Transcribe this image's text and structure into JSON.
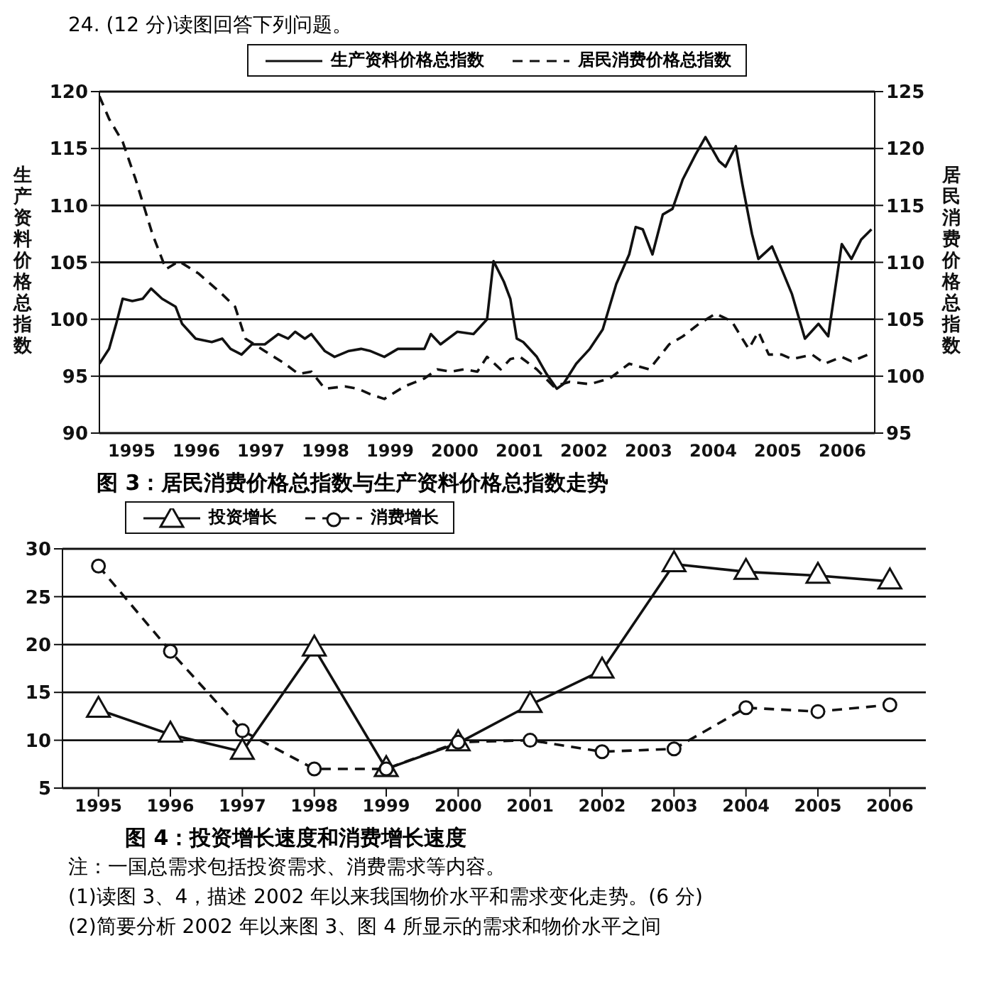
{
  "chart_data": [
    {
      "type": "line",
      "title": "图 3：居民消费价格总指数与生产资料价格总指数走势",
      "ylabel": "生产资料价格总指数",
      "y2label": "居民消费价格总指数",
      "annotations": [
        "24. (12 分)读图回答下列问题。"
      ],
      "xlim": [
        1995,
        2007
      ],
      "xticks": [
        {
          "value": 1995.5,
          "label": "1995"
        },
        {
          "value": 1996.5,
          "label": "1996"
        },
        {
          "value": 1997.5,
          "label": "1997"
        },
        {
          "value": 1998.5,
          "label": "1998"
        },
        {
          "value": 1999.5,
          "label": "1999"
        },
        {
          "value": 2000.5,
          "label": "2000"
        },
        {
          "value": 2001.5,
          "label": "2001"
        },
        {
          "value": 2002.5,
          "label": "2002"
        },
        {
          "value": 2003.5,
          "label": "2003"
        },
        {
          "value": 2004.5,
          "label": "2004"
        },
        {
          "value": 2005.5,
          "label": "2005"
        },
        {
          "value": 2006.5,
          "label": "2006"
        }
      ],
      "ylim": [
        90,
        120
      ],
      "yticks": [
        90,
        95,
        100,
        105,
        110,
        115,
        120
      ],
      "y2lim": [
        95,
        125
      ],
      "y2ticks": [
        95,
        100,
        105,
        110,
        115,
        120,
        125
      ],
      "grid": "y",
      "legend": "top",
      "marker": "none",
      "series": [
        {
          "name": "生产资料价格总指数",
          "color": "#111111",
          "line_style": "solid",
          "x": [
            1995.0,
            1995.15,
            1995.26,
            1995.36,
            1995.51,
            1995.67,
            1995.8,
            1995.97,
            1996.18,
            1996.28,
            1996.49,
            1996.74,
            1996.9,
            1997.03,
            1997.2,
            1997.36,
            1997.56,
            1997.77,
            1997.92,
            1998.03,
            1998.18,
            1998.28,
            1998.49,
            1998.64,
            1998.85,
            1999.05,
            1999.2,
            1999.41,
            1999.62,
            1999.82,
            2000.03,
            2000.13,
            2000.28,
            2000.54,
            2000.79,
            2001.0,
            2001.1,
            2001.26,
            2001.36,
            2001.46,
            2001.56,
            2001.77,
            2001.92,
            2002.08,
            2002.18,
            2002.38,
            2002.59,
            2002.79,
            2003.0,
            2003.2,
            2003.3,
            2003.41,
            2003.56,
            2003.72,
            2003.87,
            2004.03,
            2004.23,
            2004.38,
            2004.59,
            2004.69,
            2004.85,
            2004.95,
            2005.1,
            2005.2,
            2005.41,
            2005.56,
            2005.72,
            2005.92,
            2006.13,
            2006.28,
            2006.49,
            2006.64,
            2006.79,
            2006.95
          ],
          "values": [
            96.1,
            97.4,
            99.6,
            101.8,
            101.6,
            101.8,
            102.7,
            101.8,
            101.1,
            99.6,
            98.3,
            98.0,
            98.3,
            97.4,
            96.9,
            97.8,
            97.8,
            98.7,
            98.3,
            98.9,
            98.3,
            98.7,
            97.2,
            96.7,
            97.2,
            97.4,
            97.2,
            96.7,
            97.4,
            97.4,
            97.4,
            98.7,
            97.8,
            98.9,
            98.7,
            100.0,
            105.1,
            103.3,
            101.8,
            98.3,
            98.0,
            96.7,
            95.2,
            93.9,
            94.3,
            96.1,
            97.4,
            99.1,
            103.1,
            105.7,
            108.1,
            107.9,
            105.7,
            109.2,
            109.7,
            112.3,
            114.5,
            116.0,
            113.9,
            113.4,
            115.2,
            111.9,
            107.5,
            105.3,
            106.4,
            104.4,
            102.2,
            98.3,
            99.6,
            98.5,
            106.6,
            105.3,
            107.0,
            107.9
          ]
        },
        {
          "name": "居民消费价格总指数",
          "color": "#111111",
          "line_style": "dashed",
          "axis": "y2",
          "x": [
            1995.0,
            1995.15,
            1995.36,
            1995.56,
            1995.82,
            1996.03,
            1996.23,
            1996.54,
            1996.9,
            1997.1,
            1997.26,
            1997.56,
            1997.87,
            1998.08,
            1998.28,
            1998.49,
            1998.8,
            1999.0,
            1999.2,
            1999.41,
            1999.72,
            2000.03,
            2000.23,
            2000.44,
            2000.64,
            2000.85,
            2001.0,
            2001.21,
            2001.36,
            2001.51,
            2001.77,
            2002.03,
            2002.28,
            2002.59,
            2002.9,
            2003.2,
            2003.51,
            2003.82,
            2004.03,
            2004.28,
            2004.54,
            2004.79,
            2004.95,
            2005.05,
            2005.2,
            2005.36,
            2005.56,
            2005.72,
            2006.03,
            2006.23,
            2006.49,
            2006.64,
            2006.9
          ],
          "values": [
            124.6,
            122.6,
            120.6,
            117.3,
            112.5,
            109.4,
            110.1,
            109.0,
            107.2,
            106.1,
            103.3,
            102.2,
            101.1,
            100.2,
            100.4,
            98.9,
            99.1,
            98.9,
            98.4,
            98.0,
            99.1,
            99.8,
            100.6,
            100.4,
            100.6,
            100.4,
            101.7,
            100.6,
            101.5,
            101.7,
            100.6,
            99.1,
            99.5,
            99.3,
            99.8,
            101.1,
            100.6,
            102.8,
            103.5,
            104.6,
            105.5,
            104.8,
            103.3,
            102.4,
            103.9,
            101.9,
            101.9,
            101.5,
            101.9,
            101.1,
            101.7,
            101.3,
            101.9
          ]
        }
      ]
    },
    {
      "type": "line",
      "title": "图 4：投资增长速度和消费增长速度",
      "annotations": [
        "注：一国总需求包括投资需求、消费需求等内容。",
        "(1)读图 3、4，描述 2002 年以来我国物价水平和需求变化走势。(6 分)",
        "(2)简要分析 2002 年以来图 3、图 4 所显示的需求和物价水平之间"
      ],
      "categories": [
        "1995",
        "1996",
        "1997",
        "1998",
        "1999",
        "2000",
        "2001",
        "2002",
        "2003",
        "2004",
        "2005",
        "2006"
      ],
      "ylim": [
        5,
        30
      ],
      "yticks": [
        5,
        10,
        15,
        20,
        25,
        30
      ],
      "grid": "y",
      "legend": "top left",
      "series": [
        {
          "name": "投资增长",
          "color": "#111111",
          "line_style": "solid",
          "marker": "triangle",
          "values": [
            13.2,
            10.6,
            8.8,
            19.6,
            7.0,
            9.7,
            13.7,
            17.3,
            28.4,
            27.6,
            27.2,
            26.6
          ]
        },
        {
          "name": "消费增长",
          "color": "#111111",
          "line_style": "dashed",
          "marker": "circle",
          "values": [
            28.2,
            19.3,
            11.0,
            7.0,
            7.0,
            9.8,
            10.0,
            8.8,
            9.1,
            13.4,
            13.0,
            13.7
          ]
        }
      ]
    }
  ]
}
